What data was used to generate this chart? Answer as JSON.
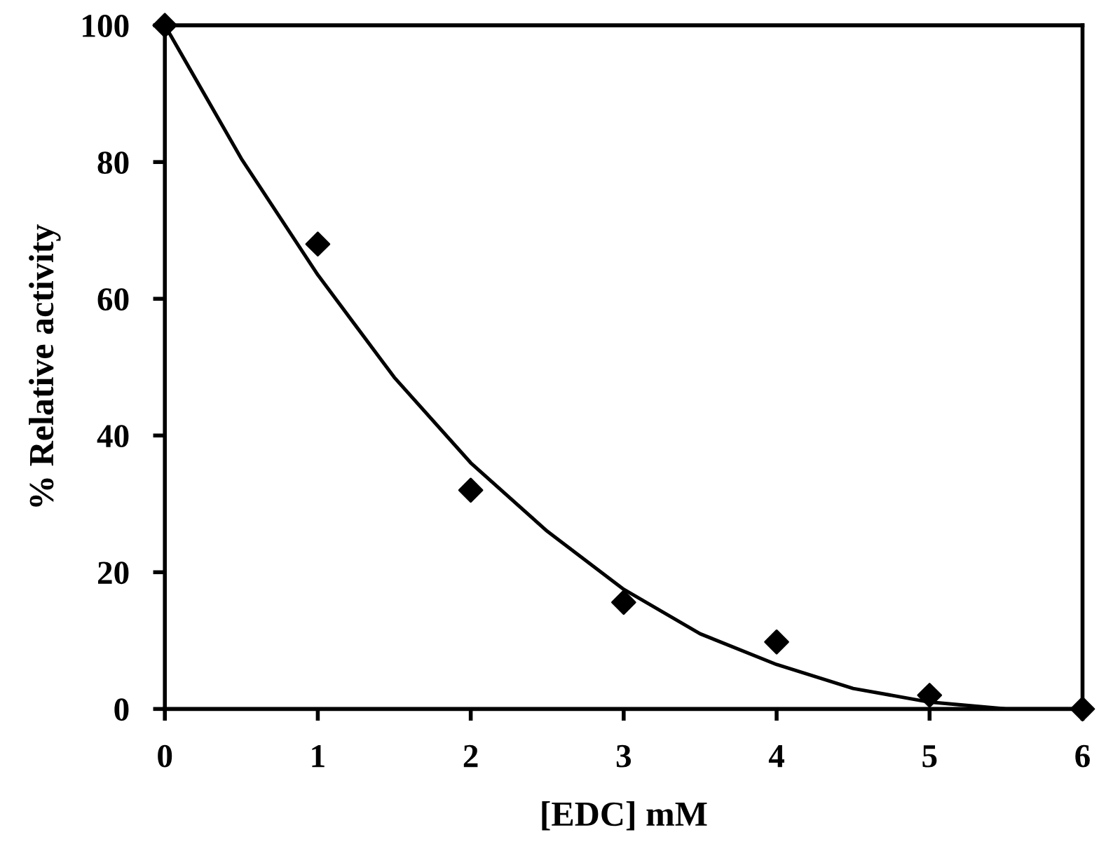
{
  "chart_data": {
    "type": "scatter",
    "xlabel": "[EDC] mM",
    "ylabel": "% Relative activity",
    "xlim": [
      0,
      6
    ],
    "ylim": [
      0,
      100
    ],
    "xticks": [
      0,
      1,
      2,
      3,
      4,
      5,
      6
    ],
    "yticks": [
      0,
      20,
      40,
      60,
      80,
      100
    ],
    "grid": false,
    "legend": false,
    "marker": "diamond",
    "series": [
      {
        "color": "#000000",
        "x": [
          0,
          1,
          2,
          3,
          4,
          5,
          6
        ],
        "values": [
          100,
          68,
          32,
          15.6,
          9.8,
          2,
          0
        ]
      },
      {
        "type": "line",
        "color": "#000000",
        "marker": "none",
        "line_style": "solid",
        "x": [
          0,
          0.5,
          1,
          1.5,
          2,
          2.5,
          3,
          3.5,
          4,
          4.5,
          5,
          5.5,
          6
        ],
        "values": [
          100,
          80.5,
          63.5,
          48.5,
          36,
          26,
          17.5,
          11,
          6.5,
          3,
          1,
          0,
          0
        ]
      }
    ]
  }
}
